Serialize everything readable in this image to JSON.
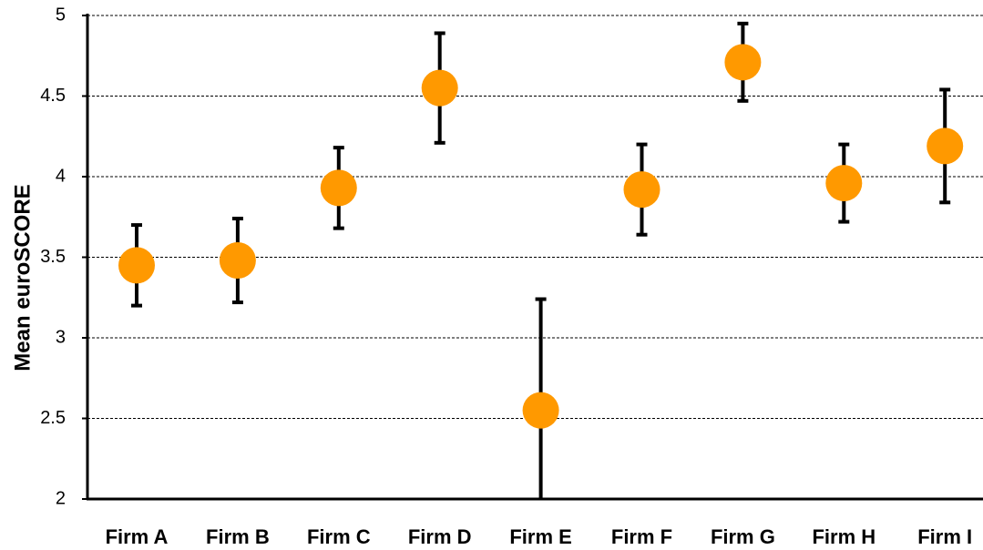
{
  "chart_data": {
    "type": "dot-error",
    "y_label": "Mean euroSCORE",
    "categories": [
      "Firm A",
      "Firm B",
      "Firm C",
      "Firm D",
      "Firm E",
      "Firm F",
      "Firm G",
      "Firm H",
      "Firm I"
    ],
    "values": [
      3.45,
      3.48,
      3.93,
      4.55,
      2.55,
      3.92,
      4.71,
      3.96,
      4.19
    ],
    "errors": [
      0.25,
      0.26,
      0.25,
      0.34,
      0.69,
      0.28,
      0.24,
      0.24,
      0.35
    ],
    "color": "#ff9900",
    "ylim": [
      2,
      5
    ],
    "yticks": [
      2,
      2.5,
      3,
      3.5,
      4,
      4.5,
      5
    ],
    "grid": true
  }
}
